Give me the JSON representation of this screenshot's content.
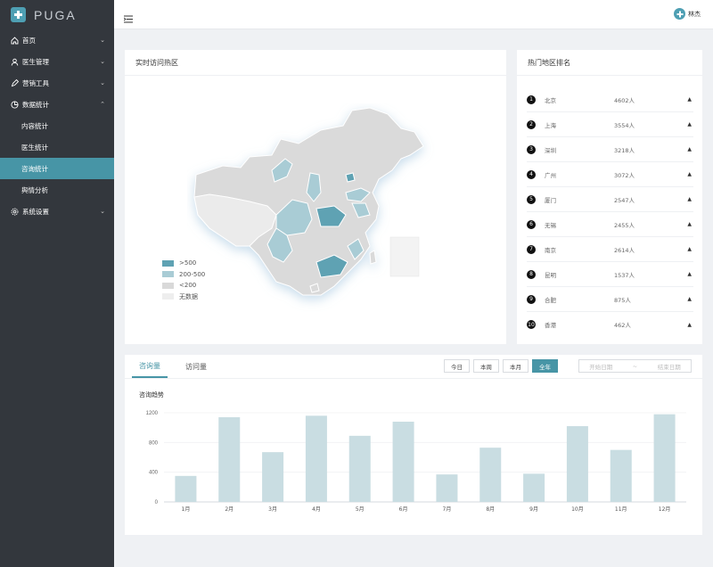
{
  "app": {
    "logo_text": "PUGA"
  },
  "sidebar": {
    "items": [
      {
        "label": "首页",
        "icon": "home-icon",
        "chev": "⌄"
      },
      {
        "label": "医生管理",
        "icon": "user-icon",
        "chev": "⌄"
      },
      {
        "label": "营销工具",
        "icon": "pen-icon",
        "chev": "⌄"
      },
      {
        "label": "数据统计",
        "icon": "chart-icon",
        "chev": "⌃"
      },
      {
        "label": "内容统计"
      },
      {
        "label": "医生统计"
      },
      {
        "label": "咨询统计"
      },
      {
        "label": "舆情分析"
      },
      {
        "label": "系统设置",
        "icon": "gear-icon",
        "chev": "⌄"
      }
    ]
  },
  "header": {
    "user_name": "林杰"
  },
  "map": {
    "title": "实时访问热区",
    "legend": [
      {
        "label": ">500",
        "color": "#5fa2b3"
      },
      {
        "label": "200-500",
        "color": "#a9ccd5"
      },
      {
        "label": "<200",
        "color": "#d9d9d9"
      },
      {
        "label": "无数据",
        "color": "#eeeeee"
      }
    ]
  },
  "ranking": {
    "title": "热门地区排名",
    "rows": [
      {
        "rank": "1",
        "city": "北京",
        "count": "4602人"
      },
      {
        "rank": "2",
        "city": "上海",
        "count": "3554人"
      },
      {
        "rank": "3",
        "city": "深圳",
        "count": "3218人"
      },
      {
        "rank": "4",
        "city": "广州",
        "count": "3072人"
      },
      {
        "rank": "5",
        "city": "厦门",
        "count": "2547人"
      },
      {
        "rank": "6",
        "city": "无锡",
        "count": "2455人"
      },
      {
        "rank": "7",
        "city": "南京",
        "count": "2614人"
      },
      {
        "rank": "8",
        "city": "昆明",
        "count": "1537人"
      },
      {
        "rank": "9",
        "city": "合肥",
        "count": "875人"
      },
      {
        "rank": "10",
        "city": "香港",
        "count": "462人"
      }
    ]
  },
  "trend": {
    "tabs": [
      "咨询量",
      "访问量"
    ],
    "buttons": [
      "今日",
      "本周",
      "本月",
      "全年"
    ],
    "date_start": "开始日期",
    "date_sep": "~",
    "date_end": "结束日期",
    "chart_title": "咨询趋势"
  },
  "chart_data": {
    "type": "bar",
    "title": "咨询趋势",
    "categories": [
      "1月",
      "2月",
      "3月",
      "4月",
      "5月",
      "6月",
      "7月",
      "8月",
      "9月",
      "10月",
      "11月",
      "12月"
    ],
    "values": [
      350,
      1140,
      670,
      1160,
      890,
      1080,
      370,
      730,
      380,
      1020,
      700,
      1180
    ],
    "ylim": [
      0,
      1200
    ],
    "yticks": [
      0,
      400,
      800,
      1200
    ],
    "bar_color": "#c9dde2",
    "grid": true
  }
}
